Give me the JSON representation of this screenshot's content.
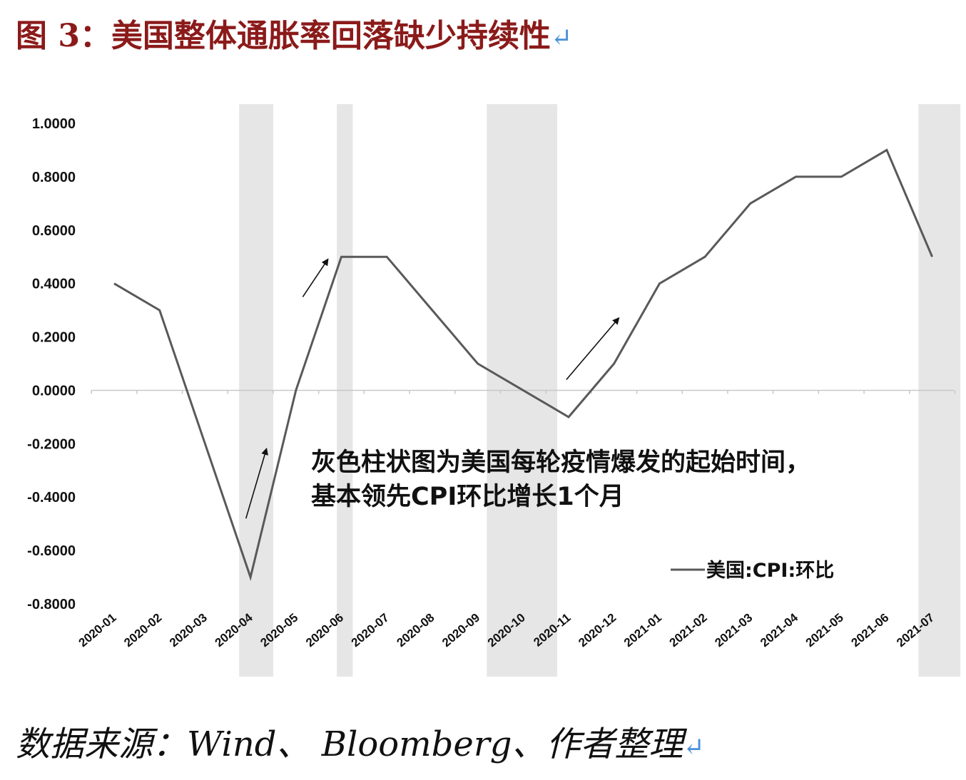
{
  "header": {
    "title": "图 3：美国整体通胀率回落缺少持续性",
    "return_mark": "↵"
  },
  "footer": {
    "source": "数据来源：Wind、 Bloomberg、作者整理",
    "return_mark": "↵"
  },
  "chart_data": {
    "type": "line",
    "title": "",
    "xlabel": "",
    "ylabel": "",
    "ylim": [
      -0.8,
      1.0
    ],
    "yticks": [
      "1.0000",
      "0.8000",
      "0.6000",
      "0.4000",
      "0.2000",
      "0.0000",
      "-0.2000",
      "-0.4000",
      "-0.6000",
      "-0.8000"
    ],
    "categories": [
      "2020-01",
      "2020-02",
      "2020-03",
      "2020-04",
      "2020-05",
      "2020-06",
      "2020-07",
      "2020-08",
      "2020-09",
      "2020-10",
      "2020-11",
      "2020-12",
      "2021-01",
      "2021-02",
      "2021-03",
      "2021-04",
      "2021-05",
      "2021-06",
      "2021-07"
    ],
    "series": [
      {
        "name": "美国:CPI:环比",
        "color": "#595959",
        "values": [
          0.4,
          0.3,
          -0.2,
          -0.7,
          0.0,
          0.5,
          0.5,
          0.3,
          0.1,
          0.0,
          -0.1,
          0.1,
          0.4,
          0.5,
          0.7,
          0.8,
          0.8,
          0.9,
          0.5
        ]
      }
    ],
    "shaded_periods": [
      {
        "from": 2.75,
        "to": 3.5,
        "color": "#e6e6e6"
      },
      {
        "from": 4.9,
        "to": 5.25,
        "color": "#e6e6e6"
      },
      {
        "from": 8.2,
        "to": 9.75,
        "color": "#e6e6e6"
      },
      {
        "from": 17.7,
        "to": 18.62,
        "color": "#e6e6e6"
      }
    ],
    "arrows": [
      {
        "from": [
          2.9,
          -0.48
        ],
        "to": [
          3.35,
          -0.22
        ]
      },
      {
        "from": [
          4.15,
          0.35
        ],
        "to": [
          4.7,
          0.49
        ]
      },
      {
        "from": [
          9.95,
          0.04
        ],
        "to": [
          11.1,
          0.27
        ]
      }
    ],
    "annotation": {
      "lines": [
        "灰色柱状图为美国每轮疫情爆发的起始时间，",
        "基本领先CPI环比增长1个月"
      ]
    },
    "grid": false,
    "legend_position": "bottom-right"
  }
}
